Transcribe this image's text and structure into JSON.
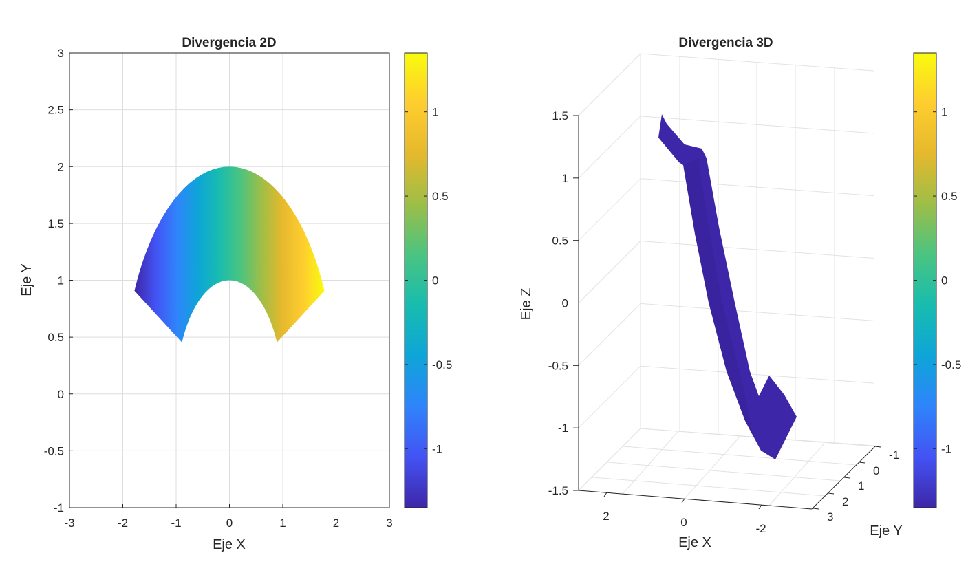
{
  "chart_data": [
    {
      "type": "heatmap",
      "title": "Divergencia 2D",
      "xlabel": "Eje X",
      "ylabel": "Eje Y",
      "xlim": [
        -3,
        3
      ],
      "ylim": [
        -1,
        3
      ],
      "grid": true,
      "xticks": [
        -3,
        -2,
        -1,
        0,
        1,
        2,
        3
      ],
      "xtick_labels": [
        "-3",
        "-2",
        "-1",
        "0",
        "1",
        "2",
        "3"
      ],
      "yticks": [
        -1,
        -0.5,
        0,
        0.5,
        1,
        1.5,
        2,
        2.5,
        3
      ],
      "ytick_labels": [
        "-1",
        "-0.5",
        "0",
        "0.5",
        "1",
        "1.5",
        "2",
        "2.5",
        "3"
      ],
      "surface": {
        "description": "annular sector: radius 1 to 2, angle 27 to 153 degrees",
        "r_range": [
          1,
          2
        ],
        "theta_range_deg": [
          27,
          153
        ],
        "color_value": "x-coordinate scaled, range about -1.35 to 1.35"
      },
      "colorbar": {
        "clim": [
          -1.35,
          1.35
        ],
        "ticks": [
          -1,
          -0.5,
          0,
          0.5,
          1
        ],
        "tick_labels": [
          "-1",
          "-0.5",
          "0",
          "0.5",
          "1"
        ],
        "colormap": "parula",
        "colors": [
          "#3e26a8",
          "#4353f4",
          "#2f84fb",
          "#0ea5d8",
          "#18bcaf",
          "#4ac481",
          "#9cbe48",
          "#e5b92d",
          "#fecd2f",
          "#f9fb0e"
        ]
      }
    },
    {
      "type": "surface3d",
      "title": "Divergencia 3D",
      "xlabel": "Eje X",
      "ylabel": "Eje Y",
      "zlabel": "Eje Z",
      "grid": true,
      "zticks": [
        -1.5,
        -1,
        -0.5,
        0,
        0.5,
        1,
        1.5
      ],
      "ztick_labels": [
        "-1.5",
        "-1",
        "-0.5",
        "0",
        "0.5",
        "1",
        "1.5"
      ],
      "xticks": [
        2,
        0,
        -2
      ],
      "xtick_labels": [
        "2",
        "0",
        "-2"
      ],
      "yticks": [
        -1,
        0,
        1,
        2,
        3
      ],
      "ytick_labels": [
        "-1",
        "0",
        "1",
        "2",
        "3"
      ],
      "colorbar": {
        "clim": [
          -1.35,
          1.35
        ],
        "ticks": [
          -1,
          -0.5,
          0,
          0.5,
          1
        ],
        "tick_labels": [
          "-1",
          "-0.5",
          "0",
          "0.5",
          "1"
        ],
        "colormap": "parula"
      }
    }
  ]
}
